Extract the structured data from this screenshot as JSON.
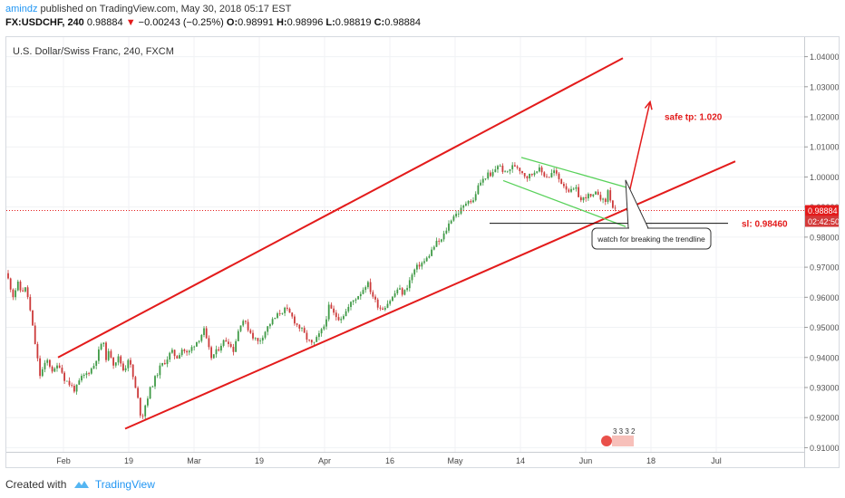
{
  "header": {
    "author": "amindz",
    "published_text": " published on TradingView.com, May 30, 2018 05:17 EST",
    "symbol": "FX:USDCHF, 240",
    "last": "0.98884",
    "change": "−0.00243 (−0.25%)",
    "o_label": "O:",
    "o_value": "0.98991",
    "h_label": "H:",
    "h_value": "0.98996",
    "l_label": "L:",
    "l_value": "0.98819",
    "c_label": "C:",
    "c_value": "0.98884"
  },
  "footer": {
    "created_with": "Created with",
    "brand": "TradingView"
  },
  "chart_data": {
    "type": "candlestick",
    "title": "U.S. Dollar/Swiss Franc, 240, FXCM",
    "y_ticks": [
      "1.04000",
      "1.03000",
      "1.02000",
      "1.01000",
      "1.00000",
      "0.99000",
      "0.98000",
      "0.97000",
      "0.96000",
      "0.95000",
      "0.94000",
      "0.93000",
      "0.92000",
      "0.91000"
    ],
    "ylim": [
      0.9035,
      1.0465
    ],
    "x_ticks": [
      "Feb",
      "19",
      "Mar",
      "19",
      "Apr",
      "16",
      "May",
      "14",
      "Jun",
      "18",
      "Jul"
    ],
    "price_label": "0.98884",
    "price_value": 0.98884,
    "countdown_label": "02:42:50",
    "close_path": [
      [
        0,
        0.968
      ],
      [
        4,
        0.964
      ],
      [
        8,
        0.96
      ],
      [
        12,
        0.965
      ],
      [
        16,
        0.962
      ],
      [
        22,
        0.963
      ],
      [
        26,
        0.956
      ],
      [
        30,
        0.948
      ],
      [
        34,
        0.94
      ],
      [
        37,
        0.934
      ],
      [
        40,
        0.936
      ],
      [
        45,
        0.939
      ],
      [
        52,
        0.935
      ],
      [
        58,
        0.938
      ],
      [
        64,
        0.933
      ],
      [
        70,
        0.931
      ],
      [
        76,
        0.929
      ],
      [
        82,
        0.933
      ],
      [
        90,
        0.935
      ],
      [
        96,
        0.937
      ],
      [
        102,
        0.942
      ],
      [
        106,
        0.946
      ],
      [
        110,
        0.94
      ],
      [
        114,
        0.942
      ],
      [
        118,
        0.938
      ],
      [
        124,
        0.94
      ],
      [
        130,
        0.935
      ],
      [
        134,
        0.94
      ],
      [
        138,
        0.936
      ],
      [
        142,
        0.93
      ],
      [
        146,
        0.925
      ],
      [
        149,
        0.919
      ],
      [
        152,
        0.923
      ],
      [
        158,
        0.929
      ],
      [
        164,
        0.933
      ],
      [
        170,
        0.937
      ],
      [
        176,
        0.939
      ],
      [
        182,
        0.942
      ],
      [
        188,
        0.94
      ],
      [
        194,
        0.943
      ],
      [
        200,
        0.941
      ],
      [
        206,
        0.944
      ],
      [
        212,
        0.946
      ],
      [
        218,
        0.949
      ],
      [
        222,
        0.944
      ],
      [
        226,
        0.94
      ],
      [
        232,
        0.942
      ],
      [
        238,
        0.945
      ],
      [
        244,
        0.946
      ],
      [
        250,
        0.942
      ],
      [
        255,
        0.948
      ],
      [
        260,
        0.953
      ],
      [
        266,
        0.95
      ],
      [
        272,
        0.947
      ],
      [
        278,
        0.945
      ],
      [
        284,
        0.948
      ],
      [
        290,
        0.951
      ],
      [
        296,
        0.953
      ],
      [
        302,
        0.955
      ],
      [
        308,
        0.956
      ],
      [
        314,
        0.954
      ],
      [
        320,
        0.951
      ],
      [
        326,
        0.949
      ],
      [
        332,
        0.946
      ],
      [
        338,
        0.944
      ],
      [
        344,
        0.947
      ],
      [
        350,
        0.95
      ],
      [
        356,
        0.957
      ],
      [
        362,
        0.954
      ],
      [
        368,
        0.953
      ],
      [
        374,
        0.955
      ],
      [
        380,
        0.958
      ],
      [
        386,
        0.96
      ],
      [
        392,
        0.962
      ],
      [
        398,
        0.965
      ],
      [
        402,
        0.962
      ],
      [
        408,
        0.958
      ],
      [
        414,
        0.956
      ],
      [
        420,
        0.958
      ],
      [
        426,
        0.96
      ],
      [
        432,
        0.963
      ],
      [
        438,
        0.961
      ],
      [
        444,
        0.965
      ],
      [
        450,
        0.969
      ],
      [
        456,
        0.971
      ],
      [
        462,
        0.972
      ],
      [
        468,
        0.975
      ],
      [
        474,
        0.978
      ],
      [
        480,
        0.979
      ],
      [
        486,
        0.983
      ],
      [
        492,
        0.987
      ],
      [
        498,
        0.988
      ],
      [
        504,
        0.99
      ],
      [
        510,
        0.993
      ],
      [
        514,
        0.991
      ],
      [
        518,
        0.995
      ],
      [
        522,
        0.998
      ],
      [
        526,
        0.999
      ],
      [
        530,
        1.001
      ],
      [
        534,
        1.0
      ],
      [
        538,
        1.002
      ],
      [
        542,
        1.004
      ],
      [
        546,
        1.003
      ],
      [
        550,
        1.001
      ],
      [
        556,
        1.003
      ],
      [
        562,
        1.004
      ],
      [
        568,
        1.002
      ],
      [
        574,
        1.0
      ],
      [
        580,
        1.001
      ],
      [
        586,
        1.003
      ],
      [
        592,
        1.001
      ],
      [
        598,
        1.0
      ],
      [
        604,
        1.002
      ],
      [
        610,
        0.999
      ],
      [
        616,
        0.997
      ],
      [
        622,
        0.995
      ],
      [
        628,
        0.996
      ],
      [
        634,
        0.992
      ],
      [
        640,
        0.994
      ],
      [
        646,
        0.993
      ],
      [
        652,
        0.995
      ],
      [
        656,
        0.993
      ],
      [
        660,
        0.991
      ],
      [
        664,
        0.996
      ],
      [
        668,
        0.99
      ],
      [
        672,
        0.9888
      ]
    ],
    "channel": [
      {
        "name": "upper",
        "color": "#e31b1b",
        "from": [
          57,
          0.94
        ],
        "to": [
          680,
          1.0395
        ]
      },
      {
        "name": "lower",
        "color": "#e31b1b",
        "from": [
          131,
          0.9163
        ],
        "to": [
          804,
          1.0052
        ]
      }
    ],
    "flag": [
      {
        "name": "flag-top",
        "color": "#58d15a",
        "from": [
          568,
          1.0065
        ],
        "to": [
          688,
          0.9962
        ]
      },
      {
        "name": "flag-bottom",
        "color": "#58d15a",
        "from": [
          548,
          0.9988
        ],
        "to": [
          683,
          0.9835
        ]
      }
    ],
    "tp_arrow": {
      "color": "#e31b1b",
      "from": [
        686,
        0.9935
      ],
      "to": [
        710,
        1.025
      ]
    },
    "sl_line": {
      "color": "#111111",
      "from": [
        533,
        0.9846
      ],
      "to": [
        796,
        0.9846
      ]
    },
    "target_label": "safe tp: 1.020",
    "stop_label": "sl: 0.98460",
    "callout": "watch for breaking the trendline",
    "events_badge": "3 3 3 2"
  }
}
